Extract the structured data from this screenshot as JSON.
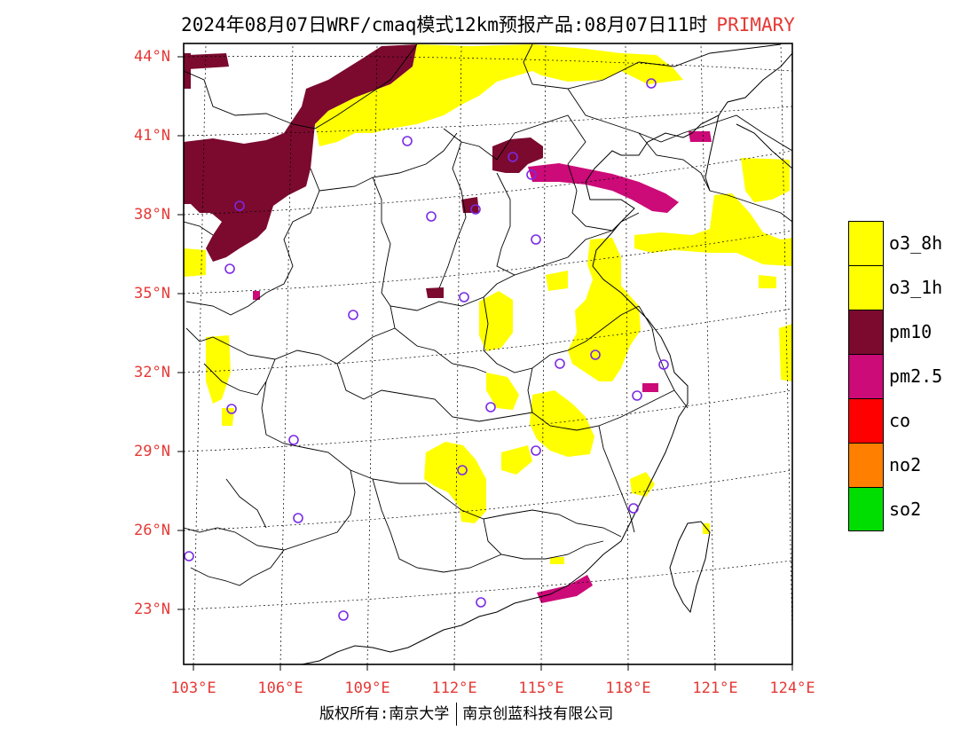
{
  "title": {
    "main": "2024年08月07日WRF/cmaq模式12km预报产品:08月07日11时",
    "tag": "PRIMARY"
  },
  "axes": {
    "lat_labels": [
      "44°N",
      "41°N",
      "38°N",
      "35°N",
      "32°N",
      "29°N",
      "26°N",
      "23°N"
    ],
    "lon_labels": [
      "103°E",
      "106°E",
      "109°E",
      "112°E",
      "115°E",
      "118°E",
      "121°E",
      "124°E"
    ]
  },
  "legend": [
    {
      "label": "o3_8h",
      "color": "#ffff00"
    },
    {
      "label": "o3_1h",
      "color": "#ffff00"
    },
    {
      "label": "pm10",
      "color": "#7b0a2e"
    },
    {
      "label": "pm2.5",
      "color": "#cc0a78"
    },
    {
      "label": "co",
      "color": "#ff0000"
    },
    {
      "label": "no2",
      "color": "#ff7f00"
    },
    {
      "label": "so2",
      "color": "#00dd00"
    }
  ],
  "colors": {
    "o3": "#ffff00",
    "pm10": "#7b0a2e",
    "pm25": "#cc0a78",
    "station": "#7a2ae6",
    "axis_text": "#e53935"
  },
  "footer": {
    "left": "版权所有:南京大学",
    "right": "南京创蓝科技有限公司"
  }
}
